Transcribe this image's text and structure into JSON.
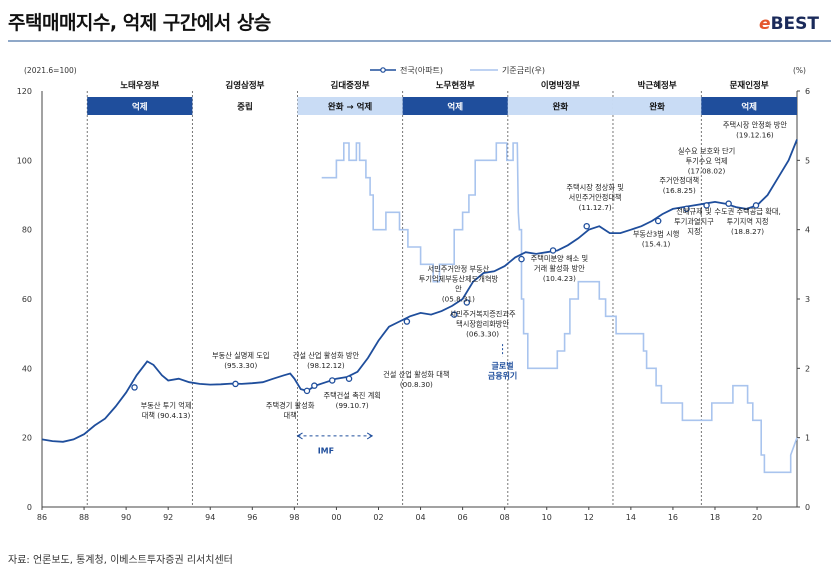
{
  "header": {
    "title": "주택매매지수, 억제 구간에서 상승",
    "logo_e": "e",
    "logo_text": "BEST"
  },
  "source": "자료: 언론보도, 통계청, 이베스트투자증권 리서치센터",
  "colors": {
    "main_line": "#1f4e9c",
    "rate_line": "#a9c4ee",
    "gov_dark": "#1f4e9c",
    "gov_light": "#c9dcf5",
    "dash": "#1f4e9c"
  },
  "chart_data": {
    "type": "line",
    "index_base_label": "(2021.6=100)",
    "right_unit_label": "(%)",
    "x_tick_labels": [
      "86",
      "88",
      "90",
      "92",
      "94",
      "96",
      "98",
      "00",
      "02",
      "04",
      "06",
      "08",
      "10",
      "12",
      "14",
      "16",
      "18",
      "20"
    ],
    "x_ticks": [
      1986,
      1988,
      1990,
      1992,
      1994,
      1996,
      1998,
      2000,
      2002,
      2004,
      2006,
      2008,
      2010,
      2012,
      2014,
      2016,
      2018,
      2020
    ],
    "xlim": [
      1986,
      2021.9
    ],
    "ylim_left": [
      0,
      120
    ],
    "left_ticks": [
      0,
      20,
      40,
      60,
      80,
      100,
      120
    ],
    "ylim_right": [
      0,
      6
    ],
    "right_ticks": [
      0,
      1,
      2,
      3,
      4,
      5,
      6
    ],
    "legend": [
      {
        "name": "전국(아파트)",
        "axis": "left",
        "style": "dark-line-with-dot"
      },
      {
        "name": "기준금리(우)",
        "axis": "right",
        "style": "light-line"
      }
    ],
    "series": [
      {
        "name": "전국(아파트)",
        "axis": "left",
        "x": [
          1986.0,
          1986.5,
          1987.0,
          1987.5,
          1988.0,
          1988.5,
          1989.0,
          1989.5,
          1990.0,
          1990.5,
          1991.0,
          1991.3,
          1991.7,
          1992.0,
          1992.5,
          1993.0,
          1993.5,
          1994.0,
          1994.5,
          1995.0,
          1995.5,
          1996.0,
          1996.5,
          1997.0,
          1997.5,
          1997.8,
          1998.0,
          1998.3,
          1998.6,
          1999.0,
          1999.5,
          2000.0,
          2000.5,
          2001.0,
          2001.5,
          2002.0,
          2002.5,
          2003.0,
          2003.5,
          2004.0,
          2004.5,
          2005.0,
          2005.5,
          2006.0,
          2006.5,
          2007.0,
          2007.5,
          2008.0,
          2008.5,
          2009.0,
          2009.5,
          2010.0,
          2010.5,
          2011.0,
          2011.5,
          2012.0,
          2012.5,
          2013.0,
          2013.5,
          2014.0,
          2014.5,
          2015.0,
          2015.5,
          2016.0,
          2016.5,
          2017.0,
          2017.5,
          2018.0,
          2018.5,
          2019.0,
          2019.5,
          2020.0,
          2020.5,
          2021.0,
          2021.5,
          2021.9
        ],
        "values": [
          19.5,
          19.0,
          18.8,
          19.5,
          21.0,
          23.5,
          25.5,
          29.0,
          33.0,
          38.0,
          42.0,
          41.0,
          38.0,
          36.5,
          37.0,
          36.0,
          35.5,
          35.3,
          35.4,
          35.6,
          35.5,
          35.7,
          36.0,
          37.0,
          38.0,
          38.5,
          37.0,
          34.0,
          33.5,
          35.0,
          36.0,
          37.0,
          37.5,
          39.0,
          43.0,
          48.0,
          52.0,
          53.5,
          55.0,
          56.0,
          55.5,
          56.5,
          58.0,
          60.0,
          65.0,
          67.5,
          68.0,
          69.5,
          72.0,
          73.5,
          73.0,
          73.5,
          74.0,
          75.5,
          77.5,
          80.0,
          81.0,
          79.0,
          79.0,
          80.0,
          81.0,
          82.5,
          84.5,
          86.0,
          86.5,
          87.0,
          87.5,
          88.0,
          87.5,
          86.5,
          86.0,
          87.0,
          90.0,
          95.0,
          100.0,
          106.0
        ]
      },
      {
        "name": "기준금리(우)",
        "axis": "right",
        "segments": [
          {
            "x": [
              1999.3,
              2000.0,
              2000.0,
              2000.35,
              2000.35,
              2000.6,
              2000.6,
              2000.95,
              2000.95,
              2001.1,
              2001.1,
              2001.4,
              2001.4,
              2001.6,
              2001.6,
              2001.75,
              2001.75,
              2002.35,
              2002.35,
              2003.0,
              2003.0,
              2003.4,
              2003.4,
              2004.0,
              2004.0,
              2004.6,
              2004.6,
              2004.9,
              2004.9,
              2005.6,
              2005.6,
              2006.0,
              2006.0,
              2006.3,
              2006.3,
              2006.6,
              2006.6,
              2007.6,
              2007.6,
              2008.1,
              2008.1,
              2008.4,
              2008.4,
              2008.6,
              2008.6,
              2008.65,
              2008.7,
              2008.8,
              2008.8,
              2008.9,
              2008.9,
              2009.1,
              2009.1,
              2010.5,
              2010.5,
              2010.85,
              2010.85,
              2011.1,
              2011.1,
              2011.5,
              2011.5,
              2012.5,
              2012.5,
              2012.8,
              2012.8,
              2013.3,
              2013.3,
              2014.6,
              2014.6,
              2014.75,
              2014.75,
              2015.2,
              2015.2,
              2015.45,
              2015.45,
              2016.45,
              2016.45,
              2017.85,
              2017.85,
              2018.85,
              2018.85,
              2019.55,
              2019.55,
              2019.8,
              2019.8,
              2020.2,
              2020.2,
              2020.35,
              2020.35,
              2021.6,
              2021.6,
              2021.9
            ],
            "y": [
              4.75,
              4.75,
              5.0,
              5.0,
              5.25,
              5.25,
              5.0,
              5.0,
              5.25,
              5.25,
              5.0,
              5.0,
              4.75,
              4.75,
              4.5,
              4.5,
              4.0,
              4.0,
              4.25,
              4.25,
              4.0,
              4.0,
              3.75,
              3.75,
              3.5,
              3.5,
              3.25,
              3.25,
              3.5,
              3.5,
              4.0,
              4.0,
              4.25,
              4.25,
              4.5,
              4.5,
              5.0,
              5.0,
              5.25,
              5.25,
              5.0,
              5.0,
              5.25,
              5.25,
              5.25,
              4.25,
              4.0,
              4.0,
              3.0,
              3.0,
              2.5,
              2.5,
              2.0,
              2.0,
              2.25,
              2.25,
              2.5,
              2.5,
              3.0,
              3.0,
              3.25,
              3.25,
              3.0,
              3.0,
              2.75,
              2.75,
              2.5,
              2.5,
              2.25,
              2.25,
              2.0,
              2.0,
              1.75,
              1.75,
              1.5,
              1.5,
              1.25,
              1.25,
              1.5,
              1.5,
              1.75,
              1.75,
              1.5,
              1.5,
              1.25,
              1.25,
              0.75,
              0.75,
              0.5,
              0.5,
              0.75,
              1.0
            ]
          }
        ]
      }
    ],
    "governments": [
      {
        "name": "노태우정부",
        "policy": "억제",
        "start": 1988.15,
        "end": 1993.15,
        "style": "dark"
      },
      {
        "name": "김영삼정부",
        "policy": "중립",
        "start": 1993.15,
        "end": 1998.15,
        "style": "none"
      },
      {
        "name": "김대중정부",
        "policy": "완화 → 억제",
        "start": 1998.15,
        "end": 2003.15,
        "style": "light"
      },
      {
        "name": "노무현정부",
        "policy": "억제",
        "start": 2003.15,
        "end": 2008.15,
        "style": "dark"
      },
      {
        "name": "이명박정부",
        "policy": "완화",
        "start": 2008.15,
        "end": 2013.15,
        "style": "light"
      },
      {
        "name": "박근혜정부",
        "policy": "완화",
        "start": 2013.15,
        "end": 2017.35,
        "style": "light"
      },
      {
        "name": "문재인정부",
        "policy": "억제",
        "start": 2017.35,
        "end": 2021.9,
        "style": "dark"
      }
    ],
    "gov_dividers": [
      1988.15,
      1993.15,
      1998.15,
      2003.15,
      2008.15,
      2013.15,
      2017.35
    ],
    "markers": [
      {
        "x": 1990.4,
        "y": 34.5
      },
      {
        "x": 1995.2,
        "y": 35.5
      },
      {
        "x": 1998.6,
        "y": 33.5
      },
      {
        "x": 1998.95,
        "y": 35.0
      },
      {
        "x": 1999.8,
        "y": 36.5
      },
      {
        "x": 2000.6,
        "y": 37.0
      },
      {
        "x": 2003.35,
        "y": 53.5
      },
      {
        "x": 2005.6,
        "y": 55.5
      },
      {
        "x": 2006.2,
        "y": 59.0
      },
      {
        "x": 2008.8,
        "y": 71.5
      },
      {
        "x": 2010.3,
        "y": 74.0
      },
      {
        "x": 2011.9,
        "y": 81.0
      },
      {
        "x": 2015.3,
        "y": 82.5
      },
      {
        "x": 2016.65,
        "y": 86.0
      },
      {
        "x": 2017.6,
        "y": 87.0
      },
      {
        "x": 2018.65,
        "y": 87.5
      },
      {
        "x": 2019.95,
        "y": 87.0
      }
    ],
    "annotations": [
      {
        "lines": [
          "부동산 투기 억제",
          "대책 (90.4.13)"
        ],
        "x": 1991.9,
        "y": 28.5,
        "anchor": "middle"
      },
      {
        "lines": [
          "부동산 실명제 도입",
          "(95.3.30)"
        ],
        "x": 1995.45,
        "y": 43.0,
        "anchor": "middle"
      },
      {
        "lines": [
          "주택경기 활성화",
          "대책"
        ],
        "x": 1997.8,
        "y": 28.5,
        "anchor": "middle"
      },
      {
        "lines": [
          "건설 산업 활성화 방안",
          "(98.12.12)"
        ],
        "x": 1999.5,
        "y": 43.0,
        "anchor": "middle"
      },
      {
        "lines": [
          "주택건설 촉진 계획",
          "(99.10.7)"
        ],
        "x": 2000.75,
        "y": 31.5,
        "anchor": "middle"
      },
      {
        "lines": [
          "건설 산업 활성화 대책",
          "(00.8.30)"
        ],
        "x": 2003.8,
        "y": 37.5,
        "anchor": "middle"
      },
      {
        "lines": [
          "서민주거안정 부동산",
          "투기억제부동산제도개혁방",
          "안",
          "(05.8.31)"
        ],
        "x": 2005.8,
        "y": 68.0,
        "anchor": "middle"
      },
      {
        "lines": [
          "서민주거복지증진과주",
          "택시장합리화방안",
          "(06.3.30)"
        ],
        "x": 2006.95,
        "y": 55.0,
        "anchor": "middle"
      },
      {
        "lines": [
          "주택미분양 해소 및",
          "거래 활성화 방안",
          "(10.4.23)"
        ],
        "x": 2010.6,
        "y": 71.0,
        "anchor": "middle"
      },
      {
        "lines": [
          "주택시장 정상화 및",
          "서민주거안정대책",
          "(11.12.7)"
        ],
        "x": 2012.3,
        "y": 91.5,
        "anchor": "middle"
      },
      {
        "lines": [
          "부동산3법 시행",
          "(15.4.1)"
        ],
        "x": 2015.2,
        "y": 78.0,
        "anchor": "middle"
      },
      {
        "lines": [
          "주거안정대책",
          "(16.8.25)"
        ],
        "x": 2016.3,
        "y": 93.5,
        "anchor": "middle"
      },
      {
        "lines": [
          "실수요 보호와 단기",
          "투기수요 억제",
          "(17.08.02)"
        ],
        "x": 2017.6,
        "y": 102.0,
        "anchor": "middle"
      },
      {
        "lines": [
          "전매규제 및",
          "투기과열지구",
          "지정"
        ],
        "x": 2017.0,
        "y": 84.5,
        "anchor": "middle"
      },
      {
        "lines": [
          "주택시장 안정화 방안",
          "(19.12.16)"
        ],
        "x": 2019.9,
        "y": 109.5,
        "anchor": "middle"
      },
      {
        "lines": [
          "수도권 주택공급 확대,",
          "투기지역 지정",
          "(18.8.27)"
        ],
        "x": 2019.55,
        "y": 84.5,
        "anchor": "middle"
      }
    ],
    "callouts": [
      {
        "lines": [
          "IMF"
        ],
        "x": 1999.5,
        "y": 15.5
      },
      {
        "lines": [
          "글로벌",
          "금융위기"
        ],
        "x": 2007.9,
        "y": 40.0
      }
    ],
    "dashed_arrows": [
      {
        "x1": 1998.15,
        "x2": 2001.7,
        "y": 20.5
      },
      {
        "x1": 2007.9,
        "x2": 2007.9,
        "y1": 47.0,
        "y2": 43.5
      }
    ]
  }
}
